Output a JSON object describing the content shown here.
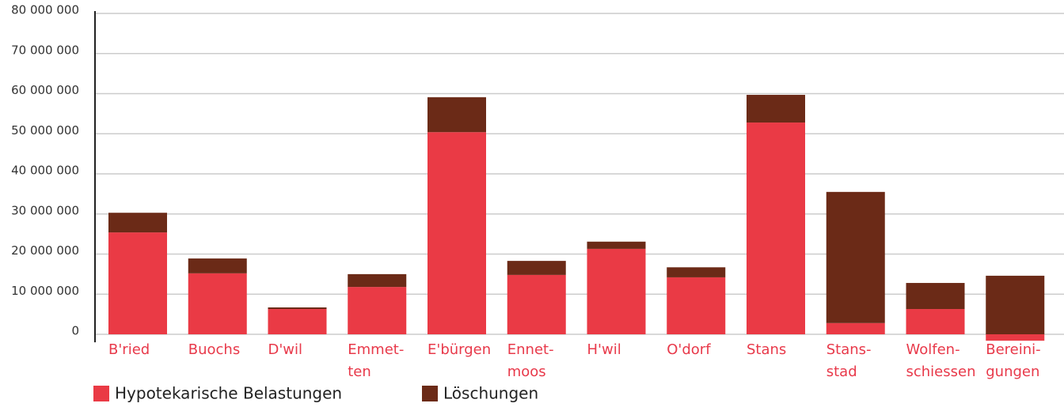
{
  "chart_data": {
    "type": "stacked_bar",
    "categories": [
      [
        "B'ried"
      ],
      [
        "Buochs"
      ],
      [
        "D'wil"
      ],
      [
        "Emmet-",
        "ten"
      ],
      [
        "E'bürgen"
      ],
      [
        "Ennet-",
        "moos"
      ],
      [
        "H'wil"
      ],
      [
        "O'dorf"
      ],
      [
        "Stans"
      ],
      [
        "Stans-",
        "stad"
      ],
      [
        "Wolfen-",
        "schiessen"
      ],
      [
        "Bereini-",
        "gungen"
      ]
    ],
    "series": [
      {
        "name": "Hypotekarische Belastungen",
        "color": "#ea3a45",
        "values": [
          25400000,
          15200000,
          6300000,
          11800000,
          50400000,
          14800000,
          21300000,
          14200000,
          52800000,
          2800000,
          6300000,
          -1600000
        ]
      },
      {
        "name": "Löschungen",
        "color": "#6b2a17",
        "values": [
          4900000,
          3700000,
          400000,
          3200000,
          8700000,
          3500000,
          1800000,
          2500000,
          6900000,
          32700000,
          6500000,
          14600000
        ]
      }
    ],
    "ylim": [
      -2000000,
      80000000
    ],
    "yticks": [
      {
        "value": 0,
        "label": "0"
      },
      {
        "value": 10000000,
        "label": "10 000 000"
      },
      {
        "value": 20000000,
        "label": "20 000 000"
      },
      {
        "value": 30000000,
        "label": "30 000 000"
      },
      {
        "value": 40000000,
        "label": "40 000 000"
      },
      {
        "value": 50000000,
        "label": "50 000 000"
      },
      {
        "value": 60000000,
        "label": "60 000 000"
      },
      {
        "value": 70000000,
        "label": "70 000 000"
      },
      {
        "value": 80000000,
        "label": "80 000 000"
      }
    ],
    "grid": true
  }
}
